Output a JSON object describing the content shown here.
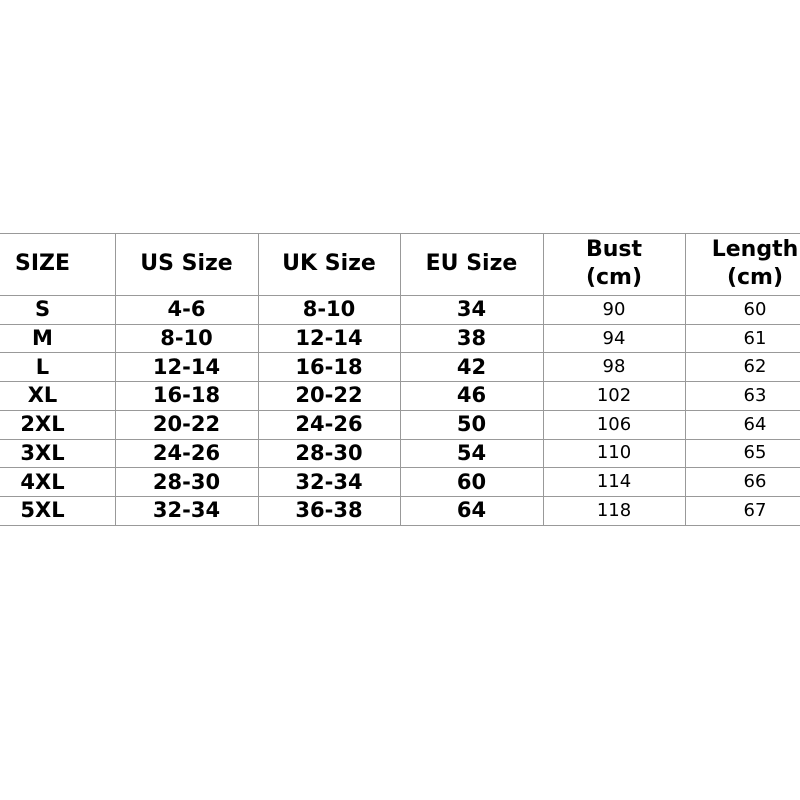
{
  "table": {
    "header": [
      "SIZE",
      "US Size",
      "UK Size",
      "EU Size",
      "Bust\n(cm)",
      "Length\n(cm)"
    ],
    "rows": [
      [
        "S",
        "4-6",
        "8-10",
        "34",
        "90",
        "60"
      ],
      [
        "M",
        "8-10",
        "12-14",
        "38",
        "94",
        "61"
      ],
      [
        "L",
        "12-14",
        "16-18",
        "42",
        "98",
        "62"
      ],
      [
        "XL",
        "16-18",
        "20-22",
        "46",
        "102",
        "63"
      ],
      [
        "2XL",
        "20-22",
        "24-26",
        "50",
        "106",
        "64"
      ],
      [
        "3XL",
        "24-26",
        "28-30",
        "54",
        "110",
        "65"
      ],
      [
        "4XL",
        "28-30",
        "32-34",
        "60",
        "114",
        "66"
      ],
      [
        "5XL",
        "32-34",
        "36-38",
        "64",
        "118",
        "67"
      ]
    ]
  }
}
